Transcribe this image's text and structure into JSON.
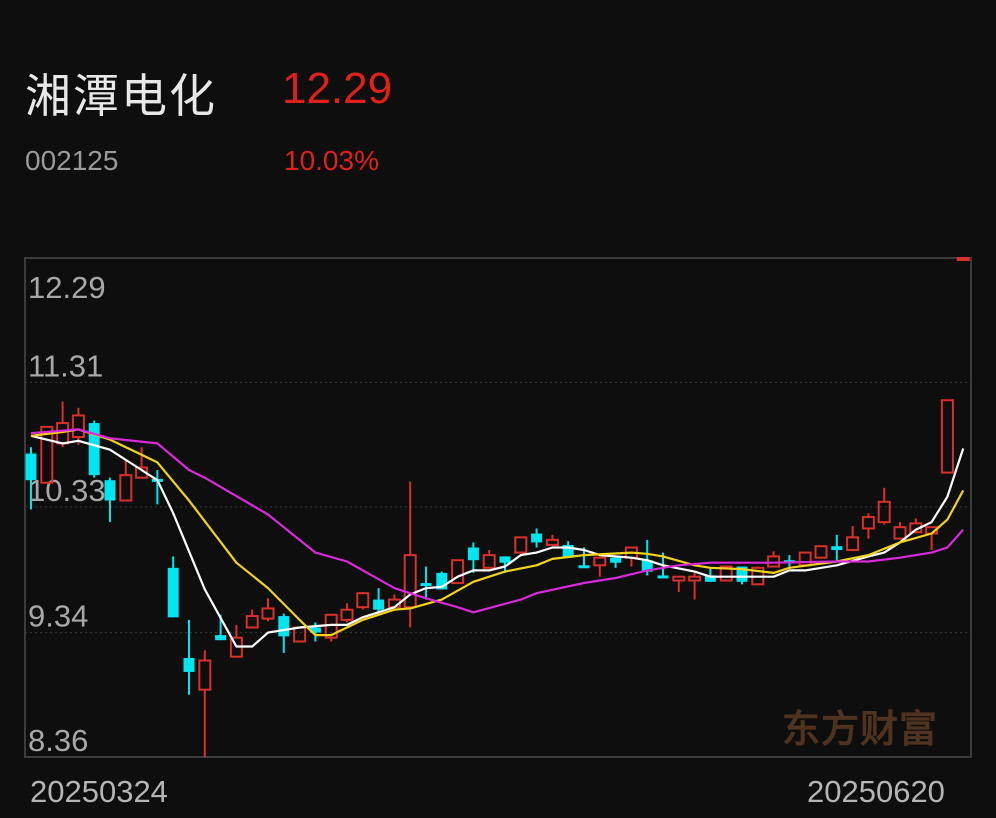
{
  "header": {
    "name": "湘潭电化",
    "price": "12.29",
    "code": "002125",
    "change_pct": "10.03%"
  },
  "watermark": "东方财富",
  "colors": {
    "up": "#d8302a",
    "down": "#00e5f0",
    "ma_white": "#ffffff",
    "ma_yellow": "#f2d31b",
    "ma_magenta": "#d82ad8",
    "background": "#0e0e0e"
  },
  "chart_data": {
    "type": "candlestick",
    "ylim": [
      8.36,
      12.29
    ],
    "y_ticks": [
      "12.29",
      "11.31",
      "10.33",
      "9.34",
      "8.36"
    ],
    "grid": true,
    "x_start_label": "20250324",
    "x_end_label": "20250620",
    "candles": [
      [
        10.75,
        10.54,
        10.8,
        10.31
      ],
      [
        10.52,
        10.96,
        10.96,
        10.52
      ],
      [
        10.83,
        10.99,
        11.16,
        10.8
      ],
      [
        10.88,
        11.05,
        11.11,
        10.82
      ],
      [
        10.99,
        10.58,
        11.01,
        10.56
      ],
      [
        10.54,
        10.38,
        10.56,
        10.21
      ],
      [
        10.38,
        10.58,
        10.7,
        10.38
      ],
      [
        10.56,
        10.64,
        10.8,
        10.56
      ],
      [
        10.55,
        10.53,
        10.62,
        10.35
      ],
      [
        9.85,
        9.46,
        9.94,
        9.46
      ],
      [
        9.14,
        9.03,
        9.44,
        8.85
      ],
      [
        8.89,
        9.12,
        9.2,
        8.36
      ],
      [
        9.32,
        9.28,
        9.48,
        9.28
      ],
      [
        9.15,
        9.3,
        9.4,
        9.15
      ],
      [
        9.38,
        9.47,
        9.52,
        9.38
      ],
      [
        9.45,
        9.53,
        9.61,
        9.43
      ],
      [
        9.47,
        9.31,
        9.49,
        9.18
      ],
      [
        9.27,
        9.38,
        9.38,
        9.27
      ],
      [
        9.38,
        9.34,
        9.42,
        9.27
      ],
      [
        9.3,
        9.48,
        9.48,
        9.27
      ],
      [
        9.44,
        9.52,
        9.57,
        9.42
      ],
      [
        9.54,
        9.65,
        9.66,
        9.52
      ],
      [
        9.6,
        9.52,
        9.69,
        9.5
      ],
      [
        9.54,
        9.6,
        9.64,
        9.54
      ],
      [
        9.54,
        9.95,
        10.53,
        9.38
      ],
      [
        9.73,
        9.71,
        9.86,
        9.6
      ],
      [
        9.81,
        9.68,
        9.82,
        9.68
      ],
      [
        9.73,
        9.91,
        9.91,
        9.73
      ],
      [
        10.01,
        9.91,
        10.05,
        9.81
      ],
      [
        9.85,
        9.95,
        9.99,
        9.85
      ],
      [
        9.94,
        9.89,
        9.94,
        9.81
      ],
      [
        9.97,
        10.09,
        10.09,
        9.97
      ],
      [
        10.12,
        10.05,
        10.16,
        10.01
      ],
      [
        10.03,
        10.07,
        10.11,
        10.03
      ],
      [
        10.03,
        9.93,
        10.06,
        9.93
      ],
      [
        9.87,
        9.86,
        10.01,
        9.86
      ],
      [
        9.87,
        9.93,
        9.93,
        9.78
      ],
      [
        9.93,
        9.89,
        9.93,
        9.85
      ],
      [
        9.93,
        10.01,
        10.01,
        9.86
      ],
      [
        9.91,
        9.82,
        10.07,
        9.79
      ],
      [
        9.79,
        9.77,
        9.97,
        9.77
      ],
      [
        9.75,
        9.78,
        9.78,
        9.66
      ],
      [
        9.75,
        9.78,
        9.81,
        9.6
      ],
      [
        9.79,
        9.74,
        9.85,
        9.74
      ],
      [
        9.75,
        9.86,
        9.86,
        9.75
      ],
      [
        9.86,
        9.74,
        9.86,
        9.72
      ],
      [
        9.72,
        9.85,
        9.86,
        9.72
      ],
      [
        9.86,
        9.94,
        9.98,
        9.86
      ],
      [
        9.91,
        9.9,
        9.95,
        9.86
      ],
      [
        9.87,
        9.97,
        9.97,
        9.87
      ],
      [
        9.93,
        10.02,
        10.02,
        9.93
      ],
      [
        10.02,
        9.99,
        10.11,
        9.9
      ],
      [
        9.99,
        10.09,
        10.18,
        9.99
      ],
      [
        10.16,
        10.25,
        10.28,
        10.08
      ],
      [
        10.21,
        10.37,
        10.48,
        10.19
      ],
      [
        10.08,
        10.17,
        10.21,
        10.08
      ],
      [
        10.13,
        10.2,
        10.24,
        10.13
      ],
      [
        10.12,
        10.17,
        10.17,
        9.99
      ],
      [
        10.6,
        11.17,
        11.17,
        10.6
      ],
      [
        12.29,
        12.29,
        12.29,
        12.29
      ]
    ],
    "ma_lines": [
      {
        "color": "#ffffff",
        "points": [
          [
            1,
            10.89
          ],
          [
            3,
            10.83
          ],
          [
            4,
            10.85
          ],
          [
            6,
            10.78
          ],
          [
            8,
            10.62
          ],
          [
            9,
            10.54
          ],
          [
            10,
            10.28
          ],
          [
            12,
            9.68
          ],
          [
            14,
            9.23
          ],
          [
            15,
            9.23
          ],
          [
            16,
            9.34
          ],
          [
            18,
            9.38
          ],
          [
            20,
            9.4
          ],
          [
            21,
            9.4
          ],
          [
            22,
            9.46
          ],
          [
            24,
            9.54
          ],
          [
            25,
            9.64
          ],
          [
            26,
            9.69
          ],
          [
            27,
            9.7
          ],
          [
            28,
            9.78
          ],
          [
            29,
            9.83
          ],
          [
            30,
            9.83
          ],
          [
            31,
            9.86
          ],
          [
            32,
            9.95
          ],
          [
            33,
            9.97
          ],
          [
            34,
            10.01
          ],
          [
            35,
            10.01
          ],
          [
            36,
            9.99
          ],
          [
            37,
            9.95
          ],
          [
            39,
            9.93
          ],
          [
            40,
            9.91
          ],
          [
            41,
            9.87
          ],
          [
            43,
            9.82
          ],
          [
            44,
            9.78
          ],
          [
            46,
            9.78
          ],
          [
            48,
            9.78
          ],
          [
            49,
            9.83
          ],
          [
            50,
            9.83
          ],
          [
            52,
            9.87
          ],
          [
            54,
            9.94
          ],
          [
            55,
            9.97
          ],
          [
            56,
            10.05
          ],
          [
            57,
            10.15
          ],
          [
            58,
            10.21
          ],
          [
            59,
            10.41
          ],
          [
            60,
            10.79
          ]
        ]
      },
      {
        "color": "#f2d31b",
        "points": [
          [
            1,
            10.89
          ],
          [
            3,
            10.92
          ],
          [
            4,
            10.94
          ],
          [
            6,
            10.86
          ],
          [
            8,
            10.74
          ],
          [
            9,
            10.68
          ],
          [
            11,
            10.38
          ],
          [
            14,
            9.89
          ],
          [
            16,
            9.69
          ],
          [
            18,
            9.44
          ],
          [
            19,
            9.32
          ],
          [
            20,
            9.32
          ],
          [
            22,
            9.44
          ],
          [
            24,
            9.52
          ],
          [
            25,
            9.53
          ],
          [
            27,
            9.6
          ],
          [
            29,
            9.74
          ],
          [
            31,
            9.82
          ],
          [
            33,
            9.87
          ],
          [
            34,
            9.92
          ],
          [
            36,
            9.95
          ],
          [
            39,
            9.97
          ],
          [
            40,
            9.96
          ],
          [
            41,
            9.94
          ],
          [
            43,
            9.87
          ],
          [
            44,
            9.85
          ],
          [
            46,
            9.84
          ],
          [
            48,
            9.81
          ],
          [
            49,
            9.85
          ],
          [
            52,
            9.9
          ],
          [
            54,
            9.95
          ],
          [
            56,
            10.05
          ],
          [
            58,
            10.12
          ],
          [
            59,
            10.23
          ],
          [
            60,
            10.46
          ]
        ]
      },
      {
        "color": "#d82ad8",
        "points": [
          [
            1,
            10.91
          ],
          [
            4,
            10.94
          ],
          [
            6,
            10.87
          ],
          [
            9,
            10.83
          ],
          [
            11,
            10.62
          ],
          [
            12,
            10.56
          ],
          [
            16,
            10.27
          ],
          [
            19,
            9.97
          ],
          [
            21,
            9.9
          ],
          [
            24,
            9.69
          ],
          [
            26,
            9.61
          ],
          [
            28,
            9.54
          ],
          [
            29,
            9.5
          ],
          [
            32,
            9.6
          ],
          [
            33,
            9.65
          ],
          [
            36,
            9.73
          ],
          [
            38,
            9.77
          ],
          [
            40,
            9.83
          ],
          [
            42,
            9.87
          ],
          [
            44,
            9.89
          ],
          [
            48,
            9.89
          ],
          [
            52,
            9.9
          ],
          [
            54,
            9.9
          ],
          [
            56,
            9.93
          ],
          [
            58,
            9.97
          ],
          [
            59,
            10.01
          ],
          [
            60,
            10.15
          ]
        ]
      }
    ]
  }
}
